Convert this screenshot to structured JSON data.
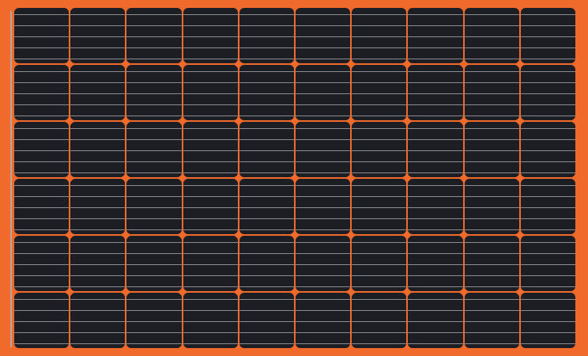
{
  "image": {
    "subject": "solar-panel",
    "grid": {
      "rows": 6,
      "columns": 10,
      "busbars_per_cell": 5
    },
    "colors": {
      "background": "#f06a2c",
      "cell": "#1d1e23",
      "busbar": "#8c8c90",
      "node": "#f06a2c"
    }
  }
}
